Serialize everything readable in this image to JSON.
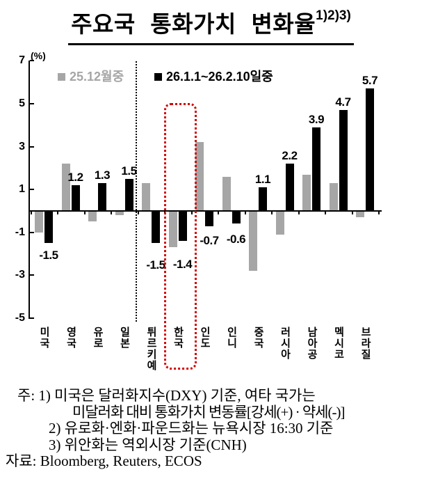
{
  "title": {
    "text": "주요국 통화가치 변화율",
    "superscript": "1)2)3)"
  },
  "chart_data": {
    "type": "bar",
    "title": "주요국 통화가치 변화율",
    "unit_label": "(%)",
    "categories": [
      "미국",
      "영국",
      "유로",
      "일본",
      "튀르키예",
      "한국",
      "인도",
      "인니",
      "중국",
      "러시아",
      "남아공",
      "멕시코",
      "브라질"
    ],
    "series": [
      {
        "name": "25.12월중",
        "color": "#a6a6a6",
        "values": [
          -1.0,
          2.2,
          -0.5,
          -0.2,
          1.3,
          -1.7,
          3.2,
          1.6,
          -2.8,
          -1.1,
          1.7,
          1.3,
          -0.3
        ],
        "data_labels": false
      },
      {
        "name": "26.1.1~26.2.10일중",
        "color": "#000000",
        "values": [
          -1.5,
          1.2,
          1.3,
          1.5,
          -1.5,
          -1.4,
          -0.7,
          -0.6,
          1.1,
          2.2,
          3.9,
          4.7,
          5.7
        ],
        "data_labels": true
      }
    ],
    "y_ticks": [
      7,
      5,
      3,
      1,
      -1,
      -3,
      -5
    ],
    "ylim": [
      -5,
      7
    ],
    "grid": false,
    "legend_position": "top-inside",
    "annotations": {
      "separator_after_category": "일본",
      "separator_style": "black-dotted-vertical-line",
      "highlight_category": "한국",
      "highlight_style": "red-dotted-rounded-box",
      "highlight_color": "#d40000"
    }
  },
  "notes": {
    "lines": [
      {
        "text": "주: 1) 미국은 달러화지수(DXY) 기준, 여타 국가는"
      },
      {
        "text": "미달러화 대비 통화가치 변동률[강세(+) · 약세(-)]"
      },
      {
        "text": "2) 유로화·엔화·파운드화는 뉴욕시장 16:30 기준"
      },
      {
        "text": "3) 위안화는 역외시장 기준(CNH)"
      },
      {
        "text": "자료: Bloomberg, Reuters, ECOS"
      }
    ]
  }
}
